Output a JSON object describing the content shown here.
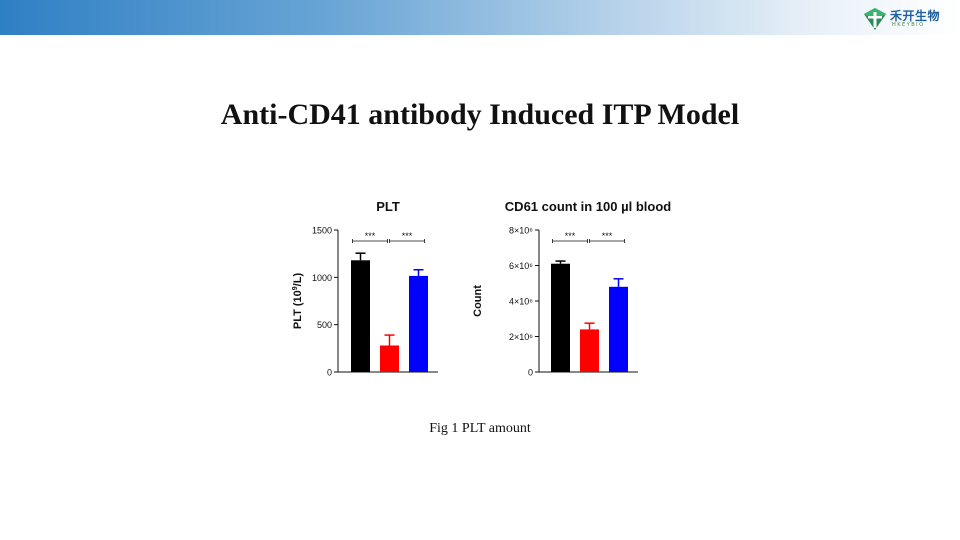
{
  "header": {
    "logo_text": "禾开生物",
    "logo_sub": "HKEYBIO"
  },
  "page_title": "Anti-CD41 antibody Induced ITP Model",
  "caption": "Fig 1 PLT amount",
  "colors": {
    "header_gradient_start": "#2f7fc4",
    "logo_green": "#3a8a4a",
    "bar_black": "#000000",
    "bar_red": "#ff0000",
    "bar_blue": "#0000ff"
  },
  "chart_data": [
    {
      "type": "bar",
      "title": "PLT",
      "ylabel": "PLT (10^9/L)",
      "ylabel_base": "PLT (10",
      "ylabel_exp": "9",
      "ylabel_tail": "/L)",
      "categories": [
        "",
        "",
        ""
      ],
      "values": [
        1180,
        280,
        1015
      ],
      "errors": [
        75,
        110,
        65
      ],
      "bar_colors": [
        "#000000",
        "#ff0000",
        "#0000ff"
      ],
      "ylim": [
        0,
        1500
      ],
      "yticks": [
        0,
        500,
        1000,
        1500
      ],
      "ytick_labels": [
        "0",
        "500",
        "1000",
        "1500"
      ],
      "significance": [
        {
          "from": 0,
          "to": 1,
          "label": "***"
        },
        {
          "from": 1,
          "to": 2,
          "label": "***"
        }
      ],
      "grid": false
    },
    {
      "type": "bar",
      "title": "CD61 count in 100 µl blood",
      "ylabel": "Count",
      "categories": [
        "",
        "",
        ""
      ],
      "values": [
        6100000,
        2400000,
        4800000
      ],
      "errors": [
        150000,
        350000,
        450000
      ],
      "bar_colors": [
        "#000000",
        "#ff0000",
        "#0000ff"
      ],
      "ylim": [
        0,
        8000000
      ],
      "yticks": [
        0,
        2000000,
        4000000,
        6000000,
        8000000
      ],
      "ytick_labels": [
        "0",
        "2×10⁶",
        "4×10⁶",
        "6×10⁶",
        "8×10⁶"
      ],
      "significance": [
        {
          "from": 0,
          "to": 1,
          "label": "***"
        },
        {
          "from": 1,
          "to": 2,
          "label": "***"
        }
      ],
      "grid": false
    }
  ]
}
